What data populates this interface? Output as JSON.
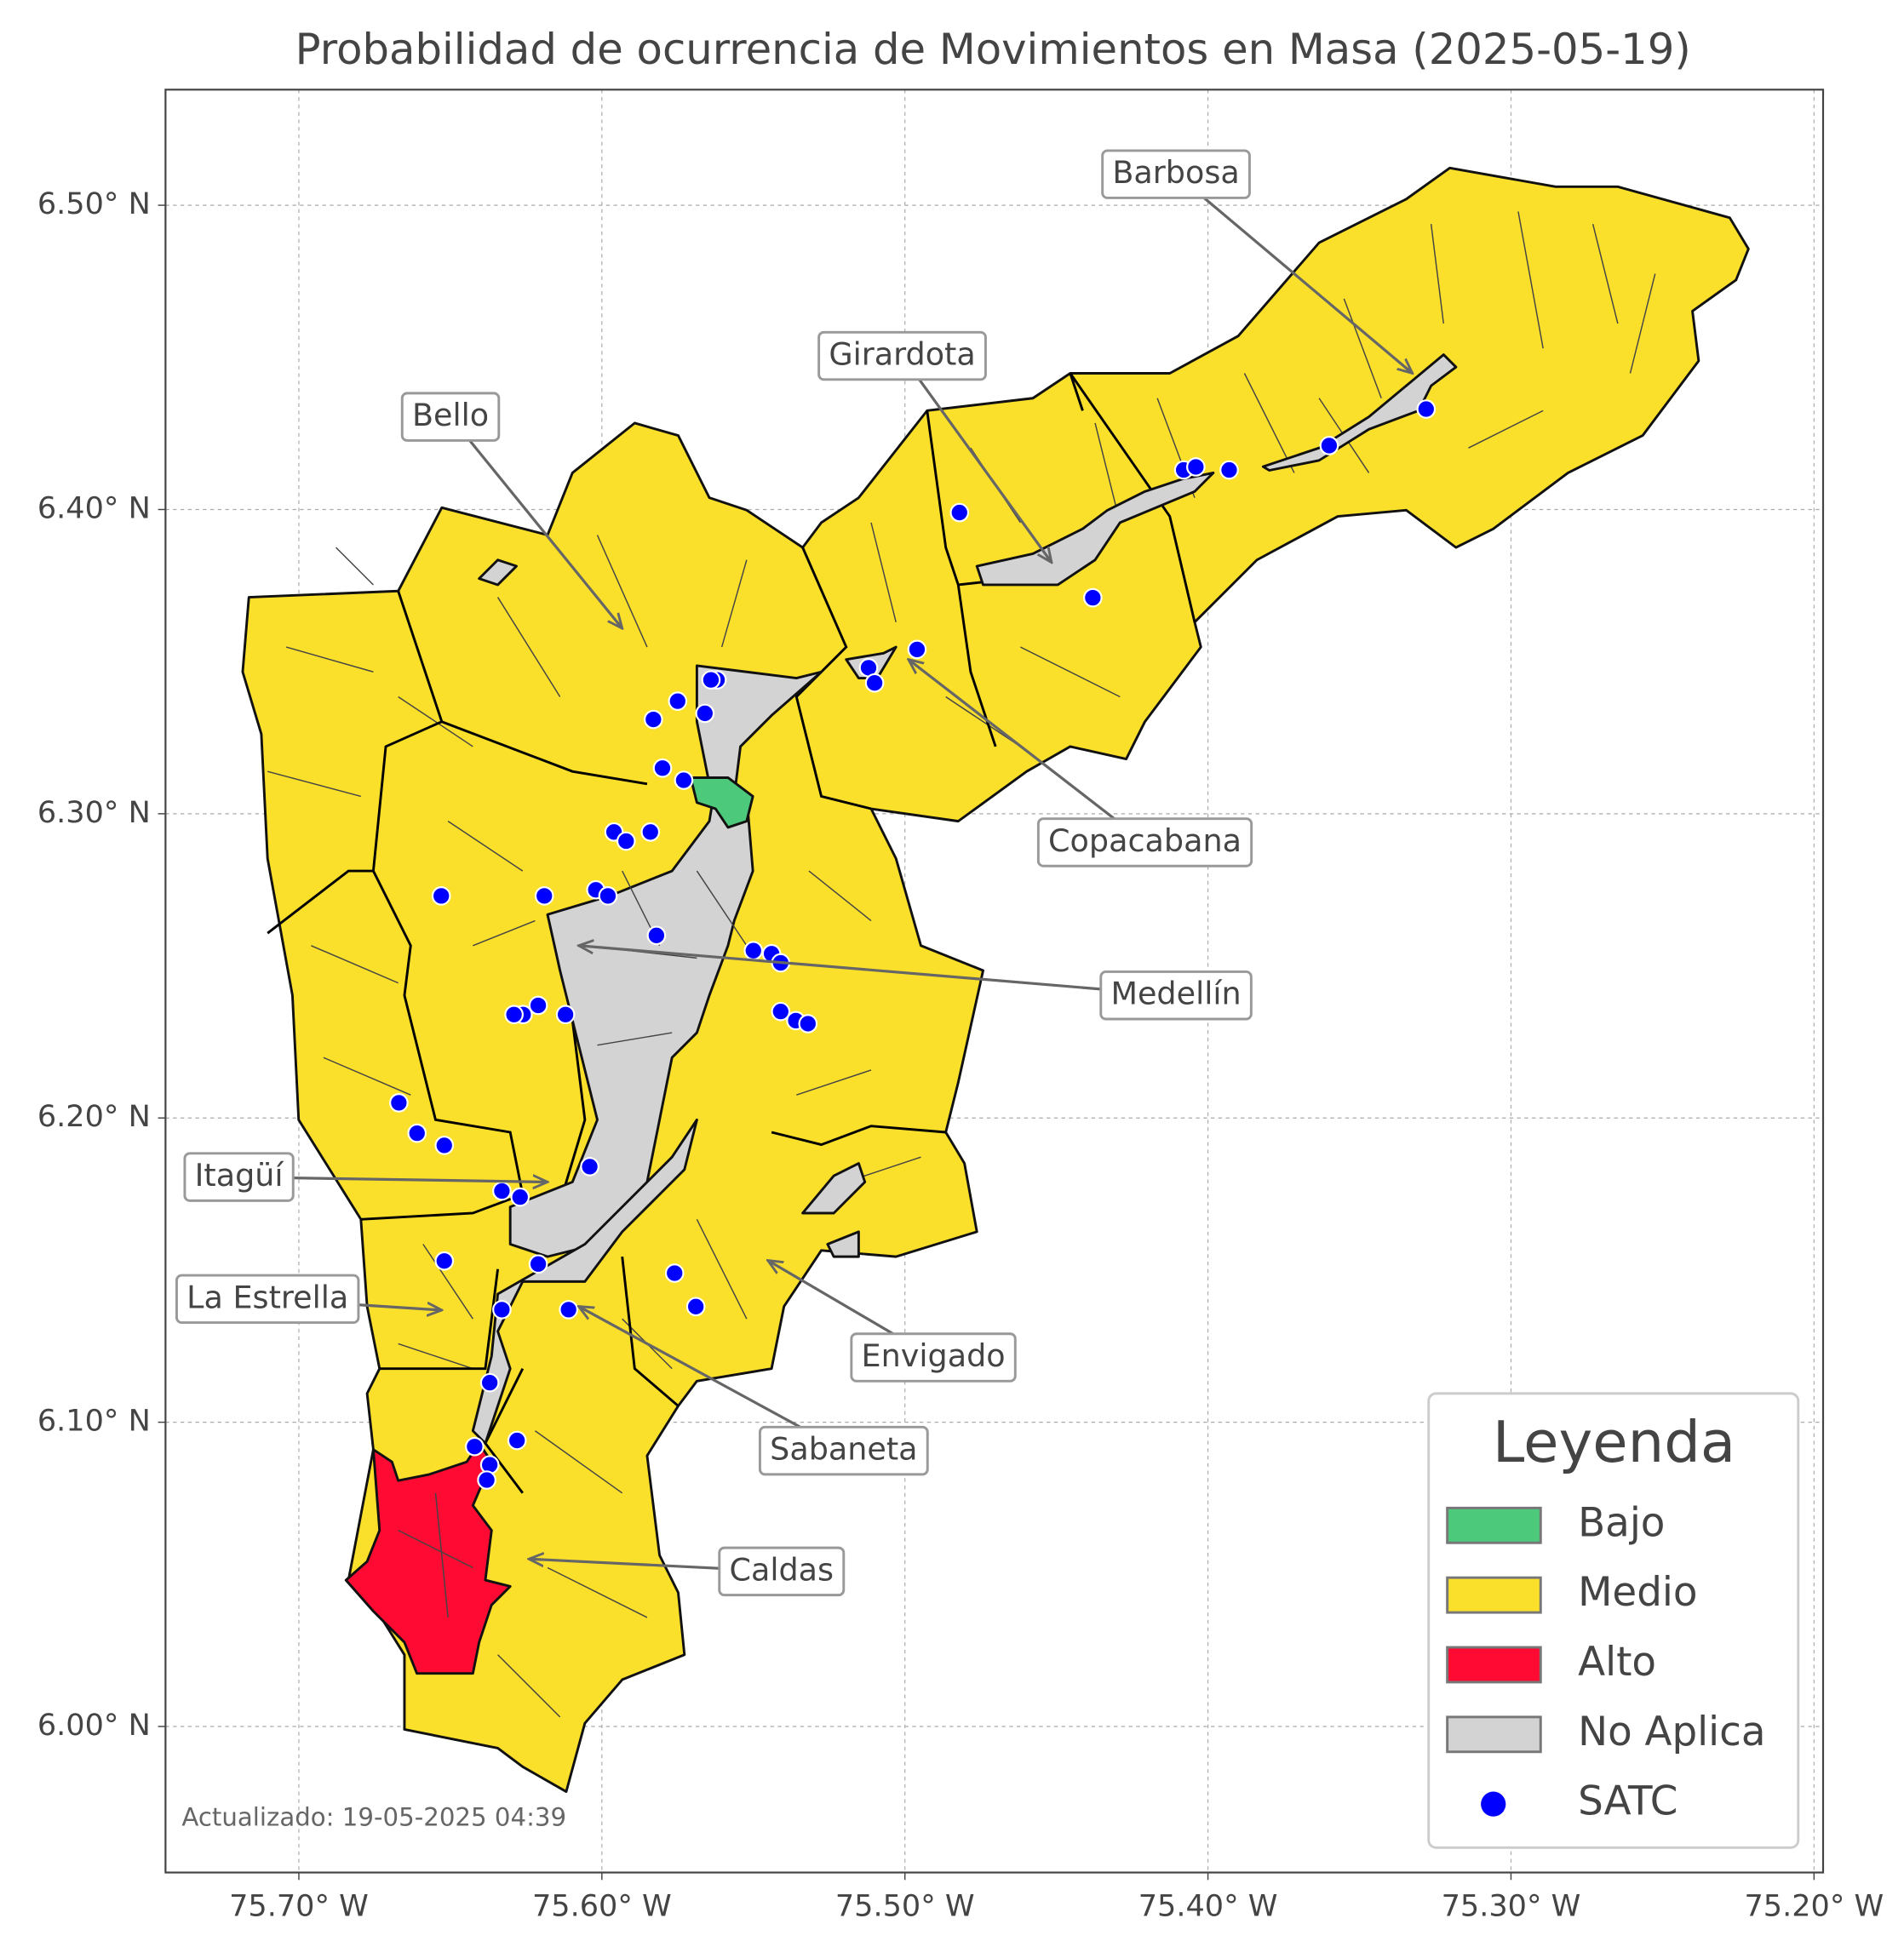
{
  "chart_data": {
    "type": "map",
    "title": "Probabilidad de ocurrencia de Movimientos en Masa (2025-05-19)",
    "xlim": [
      -75.744,
      -75.197
    ],
    "ylim": [
      5.952,
      6.538
    ],
    "xticks": [
      {
        "value": -75.7,
        "label": "75.70° W"
      },
      {
        "value": -75.6,
        "label": "75.60° W"
      },
      {
        "value": -75.5,
        "label": "75.50° W"
      },
      {
        "value": -75.4,
        "label": "75.40° W"
      },
      {
        "value": -75.3,
        "label": "75.30° W"
      },
      {
        "value": -75.2,
        "label": "75.20° W"
      }
    ],
    "yticks": [
      {
        "value": 6.0,
        "label": "6.00° N"
      },
      {
        "value": 6.1,
        "label": "6.10° N"
      },
      {
        "value": 6.2,
        "label": "6.20° N"
      },
      {
        "value": 6.3,
        "label": "6.30° N"
      },
      {
        "value": 6.4,
        "label": "6.40° N"
      },
      {
        "value": 6.5,
        "label": "6.50° N"
      }
    ],
    "grid": true,
    "legend": {
      "title": "Leyenda",
      "position": "lower right",
      "entries": [
        {
          "name": "Bajo",
          "color": "#4cc97a"
        },
        {
          "name": "Medio",
          "color": "#fbe02b"
        },
        {
          "name": "Alto",
          "color": "#fe0a33"
        },
        {
          "name": "No Aplica",
          "color": "#d3d3d3"
        }
      ]
    },
    "series": [
      {
        "name": "SATC",
        "color": "#0000ff",
        "x": [
          -75.653,
          -75.596,
          -75.592,
          -75.584,
          -75.619,
          -75.602,
          -75.598,
          -75.582,
          -75.575,
          -75.562,
          -75.564,
          -75.583,
          -75.566,
          -75.58,
          -75.573,
          -75.512,
          -75.51,
          -75.496,
          -75.482,
          -75.408,
          -75.404,
          -75.393,
          -75.36,
          -75.328,
          -75.438,
          -75.55,
          -75.544,
          -75.541,
          -75.541,
          -75.536,
          -75.532,
          -75.621,
          -75.612,
          -75.626,
          -75.629,
          -75.667,
          -75.661,
          -75.652,
          -75.604,
          -75.633,
          -75.627,
          -75.652,
          -75.621,
          -75.576,
          -75.569,
          -75.633,
          -75.611,
          -75.637,
          -75.642,
          -75.628,
          -75.637,
          -75.638
        ],
        "values": [
          6.273,
          6.294,
          6.291,
          6.294,
          6.273,
          6.275,
          6.273,
          6.26,
          6.337,
          6.344,
          6.344,
          6.331,
          6.333,
          6.315,
          6.311,
          6.348,
          6.343,
          6.354,
          6.399,
          6.413,
          6.414,
          6.413,
          6.421,
          6.433,
          6.371,
          6.255,
          6.254,
          6.251,
          6.235,
          6.232,
          6.231,
          6.237,
          6.234,
          6.234,
          6.234,
          6.205,
          6.195,
          6.191,
          6.184,
          6.176,
          6.174,
          6.153,
          6.152,
          6.149,
          6.138,
          6.137,
          6.137,
          6.113,
          6.092,
          6.094,
          6.086,
          6.081
        ]
      }
    ],
    "annotations": [
      "Barbosa",
      "Girardota",
      "Bello",
      "Copacabana",
      "Medellín",
      "Itagüí",
      "La Estrella",
      "Envigado",
      "Sabaneta",
      "Caldas"
    ],
    "footnote": "Actualizado: 19-05-2025 04:39"
  }
}
